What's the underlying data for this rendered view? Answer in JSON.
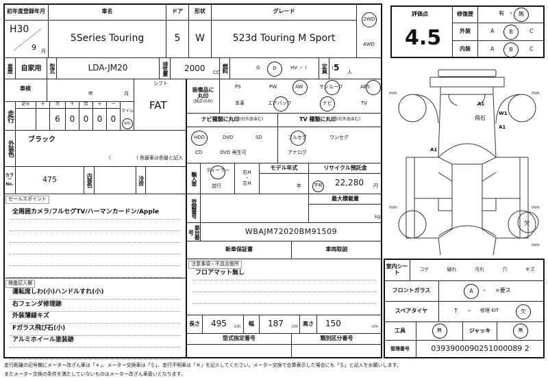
{
  "header": {
    "first_reg_label": "初年度登録年月",
    "era_year": "H30",
    "month": "9",
    "month_unit": "月",
    "car_name_label": "車名",
    "car_name": "5Series Touring",
    "door_label": "ドア",
    "doors": "5",
    "shape_label": "形状",
    "shape": "W",
    "grade_label": "グレード",
    "grade": "523d Touring M Sport",
    "drive_2wd": "2WD",
    "drive_4wd": "4WD",
    "drive_selected": "2WD"
  },
  "row2": {
    "history_label": "車歴",
    "history": "自家用",
    "model_label": "型式",
    "model": "LDA-JM20",
    "displacement_label": "排気量",
    "displacement": "2000",
    "cc": "CC",
    "fuel_label": "燃料",
    "fuel_g": "G",
    "fuel_d": "D",
    "fuel_hv": "HV ・ (",
    "fuel_close": ")",
    "fuel_selected": "D",
    "capacity_label": "定員",
    "capacity": "5",
    "capacity_unit": "人"
  },
  "inspection": {
    "label": "車検",
    "year": "年",
    "month": "月"
  },
  "mileage": {
    "label": "走行",
    "cols": [
      "記号",
      "十",
      "万",
      "千",
      "百",
      "十",
      "一"
    ],
    "digits": [
      "",
      "",
      "6",
      "0",
      "0",
      "0",
      "0"
    ],
    "mile": "マイル",
    "km": "km",
    "unit_selected": "km"
  },
  "shift": {
    "label": "シフト",
    "value": "FAT"
  },
  "equipment": {
    "label1": "装備品に",
    "label2": "丸印",
    "label3": "(純正のみ)",
    "items": [
      "PS",
      "PW",
      "AW",
      "サンルーフ",
      "ABS",
      "本革",
      "エアバック",
      "ナビ",
      "TV"
    ],
    "circled": [
      "AW",
      "サンルーフ",
      "ABS",
      "エアバック",
      "ナビ"
    ]
  },
  "navi": {
    "label": "ナビ種類に丸印",
    "sub": "(社外品含む)",
    "items": [
      "HDD",
      "DVD",
      "SD",
      "CD",
      "DVD 再生可"
    ],
    "circled": [
      "HDD"
    ]
  },
  "tv": {
    "label": "TV 種類に丸印",
    "sub": "(社外品含む)",
    "items": [
      "フルセグ",
      "ワンセグ",
      "アナログ"
    ],
    "circled": [
      "フルセグ"
    ]
  },
  "exterior_color": {
    "label": "外装色",
    "value": "ブラック",
    "note_open": "(",
    "note": ")  色替車は色替と記入"
  },
  "color_no": {
    "label": "カラーNo.",
    "value": "475",
    "interior_label": "内装色",
    "interior": "",
    "ac_label": "冷房",
    "ac": ""
  },
  "import": {
    "label": "輸入車",
    "dealer": "ディーラー",
    "parallel": "並行",
    "rh": "右H",
    "lh": "左H",
    "dot": "・",
    "selected": "ディーラー",
    "model_year_label": "モデル年式",
    "year_unit": "年",
    "unknown": "不明",
    "recycle_label": "リサイクル預託金",
    "recycle": "22,280",
    "yen": "円"
  },
  "sales_point": {
    "label": "セールスポイント",
    "lines": [
      "全周囲カメラ/フルセグTV/ハーマンカードン/Apple"
    ]
  },
  "inspector": {
    "label": "検査記入欄",
    "lines": [
      "運転席しわ(小)ハンドルすれ(小)",
      "右フェンダ修理跡",
      "外装薄線キズ",
      "Fガラス飛び石(小)",
      "アルミホイール塗装跡"
    ]
  },
  "registration": {
    "label": "登録番号",
    "max_load_label": "最大積載量",
    "kg": "kg",
    "chassis_label": "車台番号",
    "chassis": "WBAJM72020BM91509",
    "warranty": "新車保証書",
    "manual": "車両取説"
  },
  "notes": {
    "label": "注意事項・不具合箇所",
    "lines": [
      "フロアマット無し"
    ]
  },
  "dims": {
    "length_label": "長さ",
    "length": "495",
    "width_label": "幅",
    "width": "187",
    "height_label": "高さ",
    "height": "150",
    "unit": "cm",
    "type_no_label": "型式指定番号",
    "class_no_label": "類別区分番号"
  },
  "score": {
    "label": "評価点",
    "value": "4.5",
    "repair_label": "修復歴",
    "repair_yes": "有",
    "repair_no": "無",
    "repair_selected": "無",
    "ext_label": "外装",
    "int_label": "内装",
    "a": "A",
    "b": "B",
    "c": "C",
    "ext_selected": "B",
    "int_selected": "B",
    "sep": "・"
  },
  "diagram": {
    "marks": [
      "A1",
      "W1",
      "飛石",
      "A1",
      "A1"
    ],
    "mm": "mm",
    "missing": "欠"
  },
  "right_table": {
    "seat_label": "室内シート",
    "seat_items": [
      "コゲ",
      "破れ",
      "汚れ",
      "穴",
      "キズ"
    ],
    "windshield_label": "フロントガラス",
    "ws_a": "A",
    "ws_sep": "・",
    "ws_x": "×要ス",
    "ws_selected": "A",
    "spare_label": "スペアタイヤ",
    "spare_t": "T",
    "spare_kit": "修理 KIT",
    "spare_missing": "欠",
    "spare_selected": "欠",
    "tools_label": "工具",
    "tools": "無",
    "jack_label": "ジャッキ",
    "jack": "無",
    "mgmt_label": "管理番号",
    "mgmt": "0393900090251000089 2"
  },
  "footer": {
    "line1": "走行距離の記号欄にメーター改ざん車は「＊」、メーター交換車は「＄」、走行不明車は「＃」を記入してください。メーター交換で合算表示した場合にも「＄」と記入をお願いします。",
    "line2": "またメーター交換の条件を満たしていないものはメーター改ざん車扱いとなります。"
  }
}
